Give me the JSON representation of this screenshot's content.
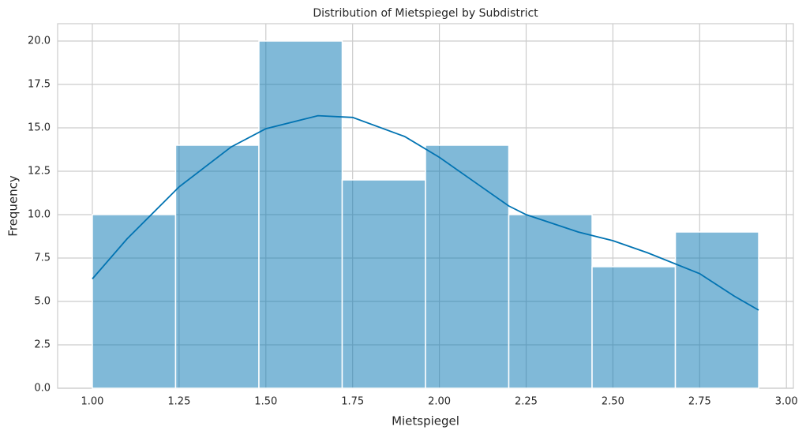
{
  "chart_data": {
    "type": "histogram",
    "title": "Distribution of Mietspiegel by Subdistrict",
    "x_label": "Mietspiegel",
    "y_label": "Frequency",
    "bins": [
      1.0,
      1.24,
      1.48,
      1.72,
      1.96,
      2.2,
      2.44,
      2.68,
      2.92
    ],
    "counts": [
      10,
      14,
      20,
      12,
      14,
      10,
      7,
      9
    ],
    "color": "#0173b2",
    "kde": {
      "x": [
        1.0,
        1.1,
        1.25,
        1.4,
        1.5,
        1.65,
        1.75,
        1.9,
        2.0,
        2.1,
        2.2,
        2.25,
        2.4,
        2.5,
        2.6,
        2.75,
        2.85,
        2.92
      ],
      "values": [
        6.3,
        8.6,
        11.6,
        13.9,
        14.95,
        15.7,
        15.6,
        14.5,
        13.3,
        11.9,
        10.5,
        10.0,
        9.0,
        8.5,
        7.8,
        6.6,
        5.3,
        4.5
      ],
      "color": "#0173b2"
    },
    "xlim": [
      0.9,
      3.02
    ],
    "ylim": [
      0,
      21
    ],
    "xticks": [
      {
        "value": 1.0,
        "label": "1.00"
      },
      {
        "value": 1.25,
        "label": "1.25"
      },
      {
        "value": 1.5,
        "label": "1.50"
      },
      {
        "value": 1.75,
        "label": "1.75"
      },
      {
        "value": 2.0,
        "label": "2.00"
      },
      {
        "value": 2.25,
        "label": "2.25"
      },
      {
        "value": 2.5,
        "label": "2.50"
      },
      {
        "value": 2.75,
        "label": "2.75"
      },
      {
        "value": 3.0,
        "label": "3.00"
      }
    ],
    "yticks": [
      {
        "value": 0,
        "label": "0.0"
      },
      {
        "value": 2.5,
        "label": "2.5"
      },
      {
        "value": 5,
        "label": "5.0"
      },
      {
        "value": 7.5,
        "label": "7.5"
      },
      {
        "value": 10,
        "label": "10.0"
      },
      {
        "value": 12.5,
        "label": "12.5"
      },
      {
        "value": 15,
        "label": "15.0"
      },
      {
        "value": 17.5,
        "label": "17.5"
      },
      {
        "value": 20,
        "label": "20.0"
      }
    ],
    "grid": true
  }
}
